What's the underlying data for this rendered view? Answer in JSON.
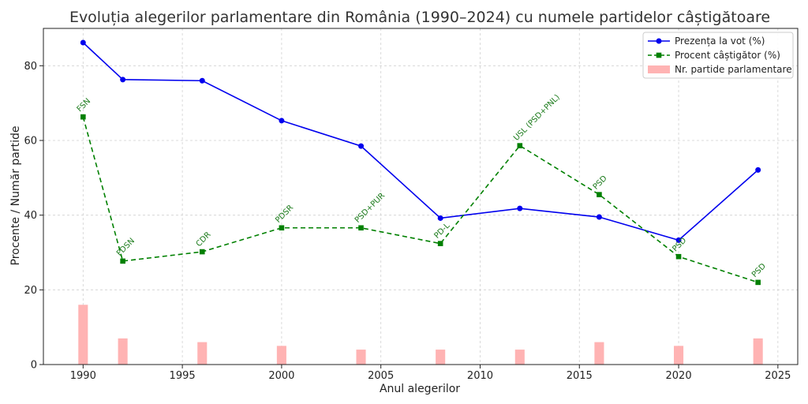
{
  "chart_data": {
    "type": "line",
    "title": "Evoluția alegerilor parlamentare din România (1990–2024) cu numele partidelor câștigătoare",
    "xlabel": "Anul alegerilor",
    "ylabel": "Procente / Număr partide",
    "xlim": [
      1988,
      2026
    ],
    "ylim": [
      0,
      90
    ],
    "x_ticks": [
      1990,
      1995,
      2000,
      2005,
      2010,
      2015,
      2020,
      2025
    ],
    "y_ticks": [
      0,
      20,
      40,
      60,
      80
    ],
    "grid": true,
    "legend_position": "top-right",
    "x": [
      1990,
      1992,
      1996,
      2000,
      2004,
      2008,
      2012,
      2016,
      2020,
      2024
    ],
    "series": [
      {
        "name": "Prezența la vot (%)",
        "kind": "line",
        "color": "#0000ee",
        "marker": "circle",
        "dash": "solid",
        "values": [
          86.2,
          76.3,
          76.0,
          65.3,
          58.5,
          39.2,
          41.8,
          39.5,
          33.3,
          52.1
        ]
      },
      {
        "name": "Procent câștigător (%)",
        "kind": "line",
        "color": "#008000",
        "marker": "square",
        "dash": "dashed",
        "values": [
          66.3,
          27.7,
          30.2,
          36.6,
          36.6,
          32.4,
          58.6,
          45.5,
          28.9,
          22.0
        ]
      },
      {
        "name": "Nr. partide parlamentare",
        "kind": "bar",
        "color": "#ffb3b3",
        "values": [
          16,
          7,
          6,
          5,
          4,
          4,
          4,
          6,
          5,
          7
        ]
      }
    ],
    "annotations": [
      "FSN",
      "FDSN",
      "CDR",
      "PDSR",
      "PSD+PUR",
      "PD-L",
      "USL (PSD+PNL)",
      "PSD",
      "PSD",
      "PSD"
    ]
  }
}
